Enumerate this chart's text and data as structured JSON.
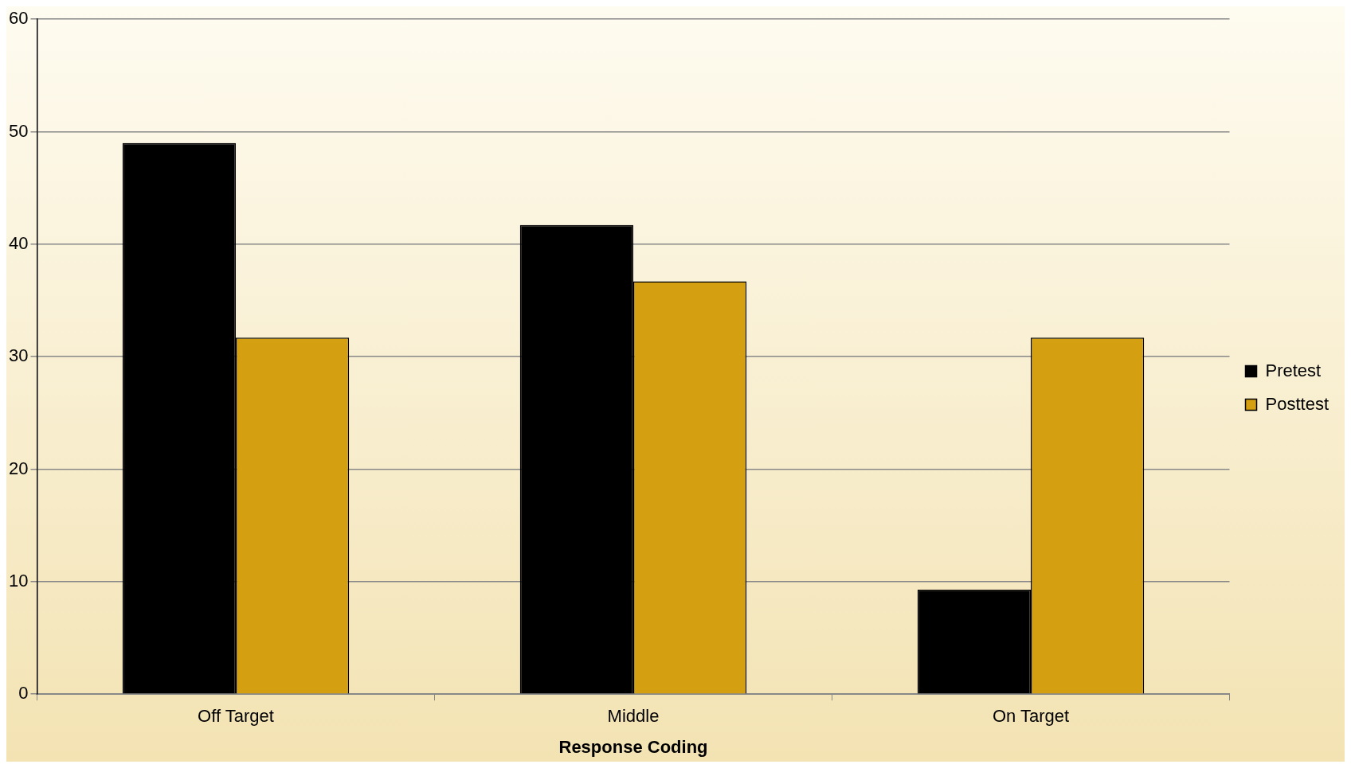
{
  "chart_data": {
    "type": "bar",
    "xlabel": "Response Coding",
    "categories": [
      "Off Target",
      "Middle",
      "On Target"
    ],
    "series": [
      {
        "name": "Pretest",
        "color": "#000000",
        "values": [
          49.0,
          41.7,
          9.3
        ]
      },
      {
        "name": "Posttest",
        "color": "#d4a012",
        "values": [
          31.7,
          36.7,
          31.7
        ]
      }
    ],
    "ylim": [
      0,
      60
    ],
    "yticks": [
      0,
      10,
      20,
      30,
      40,
      50,
      60
    ],
    "grid": "y",
    "legend": "right"
  }
}
